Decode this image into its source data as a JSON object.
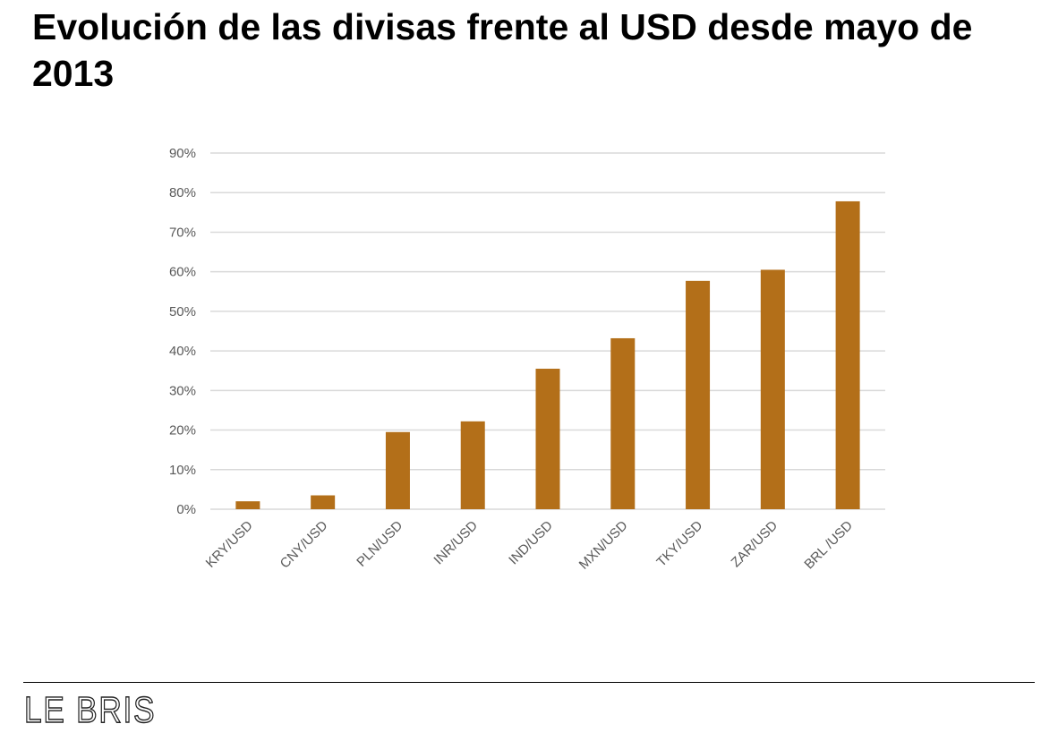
{
  "title": "Evolución de las divisas frente al USD desde mayo de 2013",
  "brand": "LE BRIS",
  "colors": {
    "bar": "#b36f19",
    "grid": "#d9d9d9",
    "tick_text": "#595959"
  },
  "chart_data": {
    "type": "bar",
    "title": "",
    "xlabel": "",
    "ylabel": "",
    "categories": [
      "KRY/USD",
      "CNY/USD",
      "PLN/USD",
      "INR/USD",
      "IND/USD",
      "MXN/USD",
      "TKY/USD",
      "ZAR/USD",
      "BRL /USD"
    ],
    "values": [
      2,
      3.5,
      19.5,
      22.2,
      35.5,
      43.2,
      57.7,
      60.5,
      77.8
    ],
    "ylim": [
      0,
      90
    ],
    "yticks": [
      0,
      10,
      20,
      30,
      40,
      50,
      60,
      70,
      80,
      90
    ],
    "ytick_labels": [
      "0%",
      "10%",
      "20%",
      "30%",
      "40%",
      "50%",
      "60%",
      "70%",
      "80%",
      "90%"
    ],
    "grid": true,
    "legend": "none"
  }
}
